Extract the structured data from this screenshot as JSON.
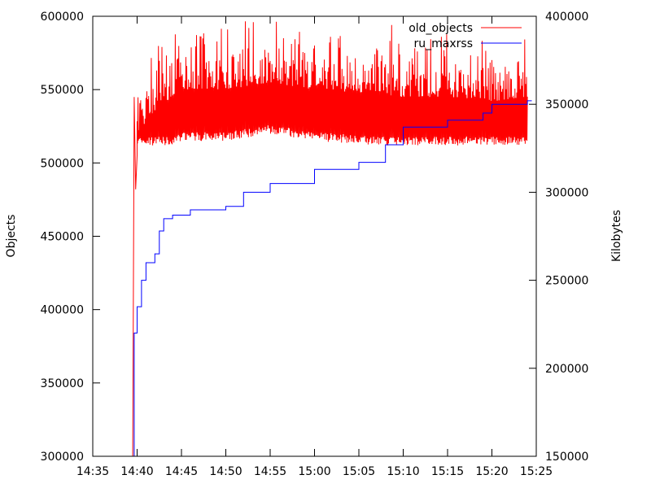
{
  "chart_data": {
    "type": "line",
    "title": "",
    "xlabel": "",
    "ylabel": "Objects",
    "y2label": "Kilobytes",
    "x_ticks": [
      "14:35",
      "14:40",
      "14:45",
      "14:50",
      "14:55",
      "15:00",
      "15:05",
      "15:10",
      "15:15",
      "15:20",
      "15:25"
    ],
    "xlim": [
      "14:35",
      "15:25"
    ],
    "ylim": [
      300000,
      600000
    ],
    "y2lim": [
      150000,
      400000
    ],
    "y_ticks": [
      "300000",
      "350000",
      "400000",
      "450000",
      "500000",
      "550000",
      "600000"
    ],
    "y2_ticks": [
      "150000",
      "200000",
      "250000",
      "300000",
      "350000",
      "400000"
    ],
    "grid": false,
    "legend_position": "top-right",
    "series": [
      {
        "name": "old_objects",
        "color": "#ff0000",
        "axis": "left",
        "values": [
          [
            "14:39:30",
            300000
          ],
          [
            "14:39:40",
            545000
          ],
          [
            "14:39:50",
            482000
          ],
          [
            "14:40:00",
            505000
          ],
          [
            "14:40:30",
            512000
          ],
          [
            "14:41:00",
            518000
          ],
          [
            "14:42:00",
            525000
          ],
          [
            "14:43:00",
            530000
          ],
          [
            "14:44:00",
            535000
          ],
          [
            "14:45:00",
            540000
          ],
          [
            "14:47:00",
            540000
          ],
          [
            "14:50:00",
            540000
          ],
          [
            "14:52:00",
            542000
          ],
          [
            "14:55:00",
            545000
          ],
          [
            "14:58:00",
            542000
          ],
          [
            "15:00:00",
            540000
          ],
          [
            "15:05:00",
            538000
          ],
          [
            "15:10:00",
            535000
          ],
          [
            "15:15:00",
            535000
          ],
          [
            "15:20:00",
            532000
          ],
          [
            "15:24:00",
            535000
          ]
        ],
        "band_min": 512000,
        "band_max": 598000
      },
      {
        "name": "ru_maxrss",
        "color": "#0000ff",
        "axis": "right",
        "values": [
          [
            "14:39:30",
            150000
          ],
          [
            "14:39:40",
            220000
          ],
          [
            "14:40:00",
            235000
          ],
          [
            "14:40:30",
            250000
          ],
          [
            "14:41:00",
            260000
          ],
          [
            "14:42:00",
            265000
          ],
          [
            "14:42:30",
            278000
          ],
          [
            "14:43:00",
            285000
          ],
          [
            "14:44:00",
            287000
          ],
          [
            "14:46:00",
            290000
          ],
          [
            "14:50:00",
            292000
          ],
          [
            "14:52:00",
            300000
          ],
          [
            "14:55:00",
            305000
          ],
          [
            "15:00:00",
            313000
          ],
          [
            "15:05:00",
            317000
          ],
          [
            "15:08:00",
            327000
          ],
          [
            "15:10:00",
            337000
          ],
          [
            "15:15:00",
            341000
          ],
          [
            "15:19:00",
            345000
          ],
          [
            "15:20:00",
            350000
          ],
          [
            "15:24:00",
            352000
          ]
        ]
      }
    ]
  }
}
